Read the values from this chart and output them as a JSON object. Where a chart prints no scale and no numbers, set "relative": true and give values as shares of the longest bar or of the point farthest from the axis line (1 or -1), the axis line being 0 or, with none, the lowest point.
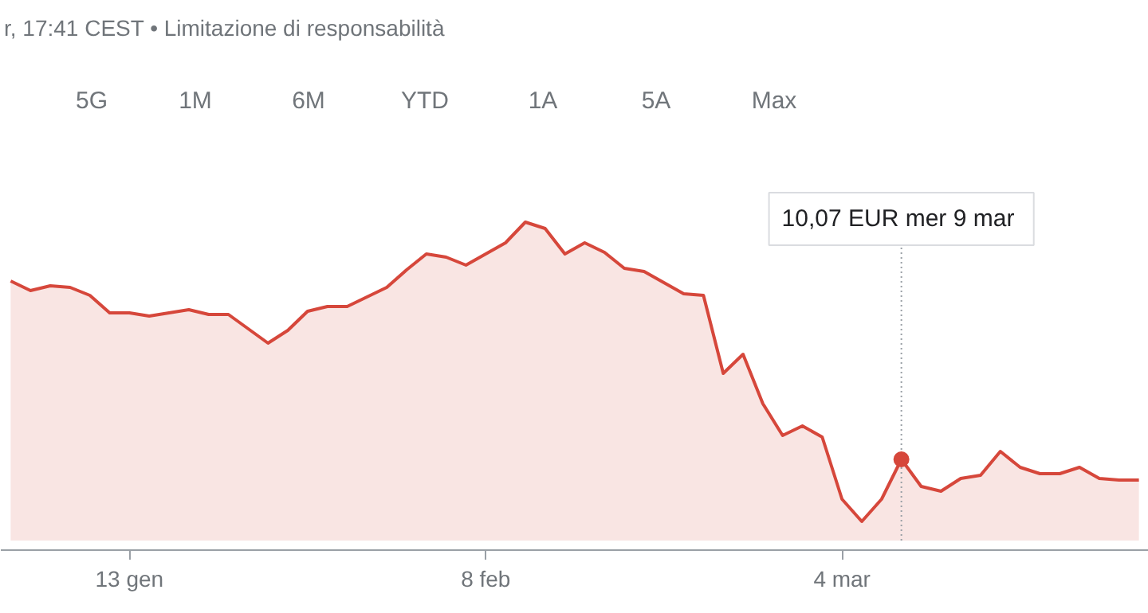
{
  "chart_data": {
    "type": "area",
    "relative": true,
    "categories": [
      null,
      null,
      null,
      null,
      null,
      null,
      "13 gen",
      null,
      null,
      null,
      null,
      null,
      null,
      null,
      null,
      null,
      null,
      null,
      null,
      null,
      null,
      null,
      null,
      null,
      "8 feb",
      null,
      null,
      null,
      null,
      null,
      null,
      null,
      null,
      null,
      null,
      null,
      null,
      null,
      null,
      null,
      null,
      null,
      "4 mar",
      null,
      null,
      null,
      null,
      null,
      null,
      null,
      null,
      null,
      null,
      null,
      null,
      null,
      null,
      null
    ],
    "series": [
      {
        "color": "#d6473b",
        "values": [
          0.815,
          0.785,
          0.8,
          0.795,
          0.77,
          0.715,
          0.715,
          0.705,
          0.715,
          0.725,
          0.71,
          0.71,
          0.665,
          0.62,
          0.66,
          0.72,
          0.735,
          0.735,
          0.765,
          0.795,
          0.85,
          0.9,
          0.89,
          0.865,
          0.9,
          0.935,
          1.0,
          0.98,
          0.9,
          0.935,
          0.905,
          0.855,
          0.845,
          0.81,
          0.775,
          0.77,
          0.525,
          0.585,
          0.43,
          0.33,
          0.36,
          0.325,
          0.13,
          0.06,
          0.13,
          0.255,
          0.17,
          0.155,
          0.195,
          0.205,
          0.28,
          0.23,
          0.21,
          0.21,
          0.23,
          0.195,
          0.19,
          0.19
        ]
      },
      {
        "type": "scatter",
        "color": "#d6473b",
        "values": [
          null,
          null,
          null,
          null,
          null,
          null,
          null,
          null,
          null,
          null,
          null,
          null,
          null,
          null,
          null,
          null,
          null,
          null,
          null,
          null,
          null,
          null,
          null,
          null,
          null,
          null,
          null,
          null,
          null,
          null,
          null,
          null,
          null,
          null,
          null,
          null,
          null,
          null,
          null,
          null,
          null,
          null,
          null,
          null,
          null,
          0.255,
          null,
          null,
          null,
          null,
          null,
          null,
          null,
          null,
          null,
          null,
          null,
          null
        ]
      }
    ],
    "annotations": [
      "r, 17:41 CEST • Limitazione di responsabilità",
      "5G",
      "1M",
      "6M",
      "YTD",
      "1A",
      "5A",
      "Max",
      "10,07 EUR  mer 9 mar"
    ]
  }
}
